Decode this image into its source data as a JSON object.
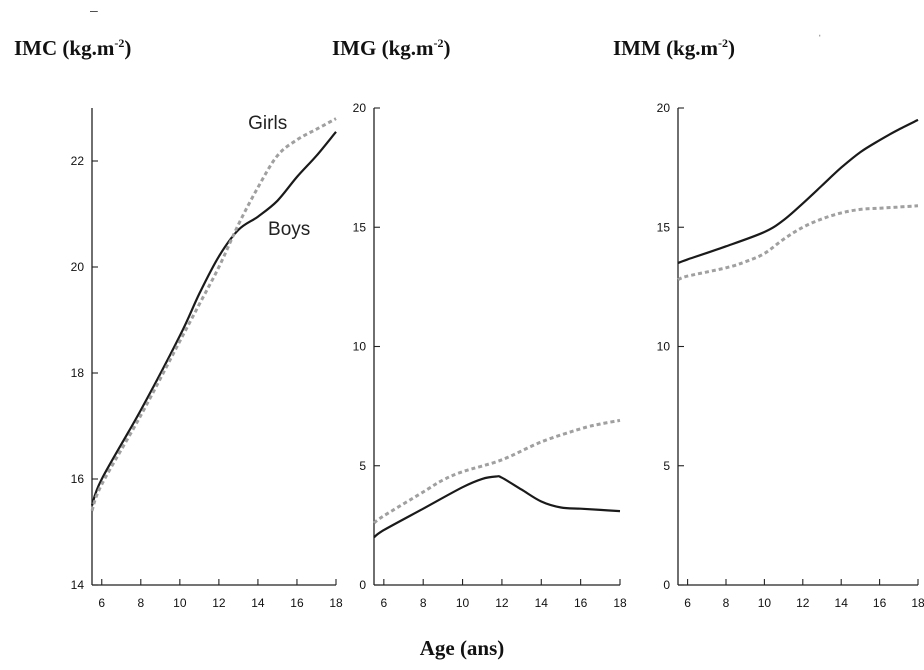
{
  "figure": {
    "xlabel": "Age (ans)"
  },
  "colors": {
    "boys": "#1a1a1a",
    "girls": "#a0a0a0"
  },
  "chart_data": [
    {
      "type": "line",
      "title_main": "IMC (kg.m",
      "title_sup": "-2",
      "title_close": ")",
      "ylim": [
        14,
        23
      ],
      "yticks": [
        14,
        16,
        18,
        20,
        22
      ],
      "xlim": [
        5.5,
        18
      ],
      "xticks": [
        6,
        8,
        10,
        12,
        14,
        16,
        18
      ],
      "annotations": [
        {
          "text": "Girls",
          "x": 14.5,
          "y": 22.6
        },
        {
          "text": "Boys",
          "x": 15.6,
          "y": 20.6
        }
      ],
      "series": [
        {
          "name": "Boys",
          "key": "boys",
          "dashed": false,
          "x": [
            5.5,
            6,
            8,
            10,
            11,
            12,
            13,
            14,
            15,
            16,
            17,
            18
          ],
          "y": [
            15.5,
            16.0,
            17.3,
            18.7,
            19.5,
            20.2,
            20.7,
            20.95,
            21.25,
            21.7,
            22.1,
            22.55
          ]
        },
        {
          "name": "Girls",
          "key": "girls",
          "dashed": true,
          "x": [
            5.5,
            6,
            8,
            10,
            11,
            12,
            13,
            14,
            15,
            16,
            17,
            18
          ],
          "y": [
            15.4,
            15.9,
            17.2,
            18.6,
            19.3,
            20.0,
            20.8,
            21.5,
            22.1,
            22.4,
            22.6,
            22.8
          ]
        }
      ]
    },
    {
      "type": "line",
      "title_main": "IMG (kg.m",
      "title_sup": "-2",
      "title_close": ")",
      "ylim": [
        0,
        20
      ],
      "yticks": [
        0,
        5,
        10,
        15,
        20
      ],
      "xlim": [
        5.5,
        18
      ],
      "xticks": [
        6,
        8,
        10,
        12,
        14,
        16,
        18
      ],
      "annotations": [],
      "series": [
        {
          "name": "Boys",
          "key": "boys",
          "dashed": false,
          "x": [
            5.5,
            6,
            8,
            10,
            11,
            11.7,
            12,
            13,
            14,
            15,
            16,
            17,
            18
          ],
          "y": [
            2.0,
            2.3,
            3.2,
            4.1,
            4.45,
            4.55,
            4.5,
            4.0,
            3.5,
            3.25,
            3.2,
            3.15,
            3.1
          ]
        },
        {
          "name": "Girls",
          "key": "girls",
          "dashed": true,
          "x": [
            5.5,
            6,
            8,
            9,
            10,
            12,
            14,
            16,
            17,
            18
          ],
          "y": [
            2.6,
            2.9,
            3.9,
            4.4,
            4.75,
            5.25,
            6.0,
            6.55,
            6.75,
            6.9
          ]
        }
      ]
    },
    {
      "type": "line",
      "title_main": "IMM (kg.m",
      "title_sup": "-2",
      "title_close": ")",
      "ylim": [
        0,
        20
      ],
      "yticks": [
        0,
        5,
        10,
        15,
        20
      ],
      "xlim": [
        5.5,
        18
      ],
      "xticks": [
        6,
        8,
        10,
        12,
        14,
        16,
        18
      ],
      "annotations": [],
      "series": [
        {
          "name": "Boys",
          "key": "boys",
          "dashed": false,
          "x": [
            5.5,
            6,
            8,
            10,
            11,
            12,
            13,
            14,
            15,
            16,
            17,
            18
          ],
          "y": [
            13.5,
            13.65,
            14.2,
            14.8,
            15.3,
            16.0,
            16.75,
            17.5,
            18.15,
            18.65,
            19.1,
            19.5
          ]
        },
        {
          "name": "Girls",
          "key": "girls",
          "dashed": true,
          "x": [
            5.5,
            6,
            8,
            9,
            10,
            11,
            12,
            13,
            14,
            15,
            16,
            17,
            18
          ],
          "y": [
            12.8,
            12.95,
            13.3,
            13.55,
            13.9,
            14.5,
            15.0,
            15.35,
            15.6,
            15.75,
            15.8,
            15.85,
            15.9
          ]
        }
      ]
    }
  ]
}
